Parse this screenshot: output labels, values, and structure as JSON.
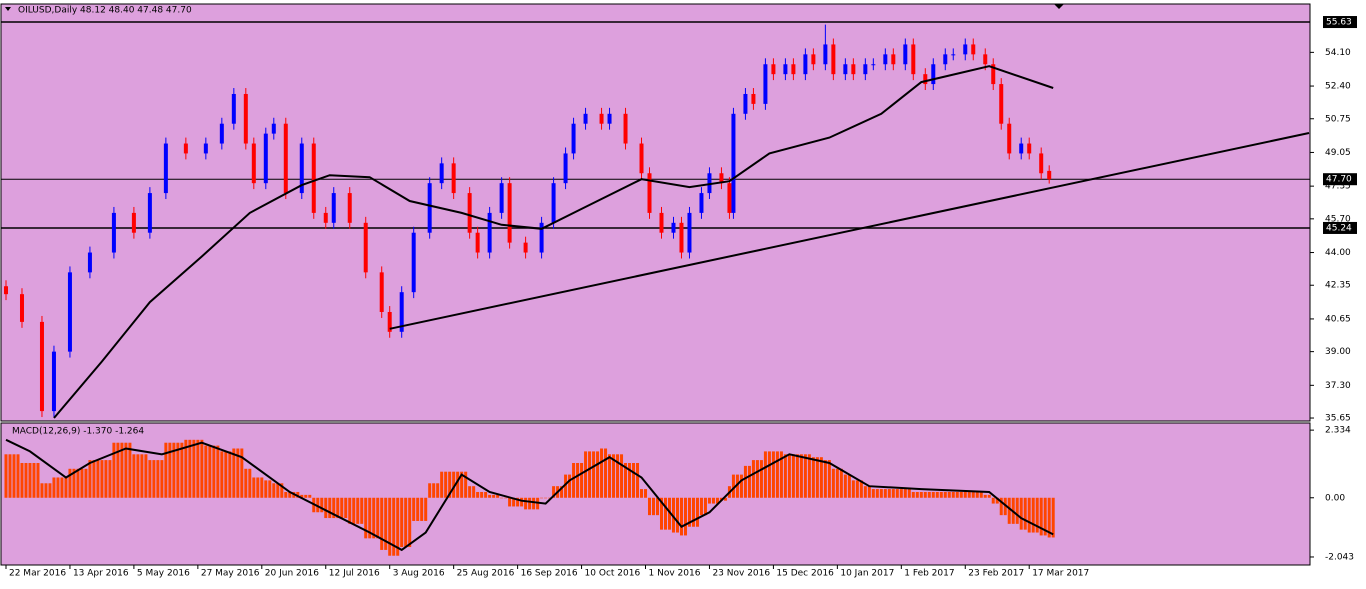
{
  "chart_data": [
    {
      "type": "candlestick",
      "title": "OILUSD,Daily  48.12 48.40 47.48 47.70",
      "x": [
        0,
        4,
        9,
        12,
        16,
        21,
        27,
        32,
        36,
        40,
        45,
        50,
        54,
        57,
        60,
        62,
        65,
        67,
        70,
        74,
        77,
        80,
        82,
        86,
        90,
        94,
        96,
        99,
        102,
        106,
        109,
        112,
        116,
        118,
        121,
        124,
        126,
        130,
        134,
        137,
        140,
        142,
        145,
        149,
        151,
        155,
        159,
        161,
        164,
        167,
        169,
        171,
        174,
        176,
        179,
        181,
        182,
        185,
        187,
        190,
        192,
        195,
        197,
        200,
        202,
        205,
        207,
        210,
        212,
        215,
        217,
        220,
        222,
        225,
        227,
        230,
        232,
        235,
        237,
        240,
        242,
        245,
        247,
        249,
        251,
        254,
        256,
        259,
        261
      ],
      "open": [
        42.3,
        41.9,
        40.5,
        36,
        39,
        43,
        44,
        46,
        45,
        47,
        49.5,
        49,
        49.5,
        50.5,
        52,
        49.5,
        47.5,
        50,
        50.5,
        47,
        49.5,
        46,
        45.5,
        47,
        45.5,
        43,
        41,
        40,
        42,
        45,
        47.5,
        48.5,
        47,
        45,
        44,
        46,
        47.5,
        44.5,
        44,
        45.5,
        47.5,
        49,
        50.5,
        51,
        50.5,
        51,
        49.5,
        48,
        46,
        45,
        45.5,
        44,
        46,
        47,
        48,
        47.5,
        46,
        51,
        52,
        51.5,
        53.5,
        53,
        53.5,
        53,
        54,
        53.5,
        54.5,
        53,
        53.5,
        53,
        53.5,
        53.5,
        54,
        53.5,
        54.5,
        53,
        52.5,
        53.5,
        54,
        54,
        54.5,
        54,
        53.5,
        52.5,
        50.5,
        49,
        49.5,
        49,
        48.12
      ],
      "high": [
        42.6,
        42.2,
        40.8,
        39.3,
        43.3,
        44.3,
        46.3,
        46.3,
        47.3,
        49.8,
        49.8,
        49.8,
        50.8,
        52.3,
        52.3,
        49.8,
        50.3,
        50.8,
        50.8,
        49.8,
        49.8,
        46.3,
        47.3,
        47.3,
        45.8,
        43.3,
        41.3,
        42.3,
        45.3,
        47.8,
        48.8,
        48.8,
        47.3,
        45.3,
        46.3,
        47.8,
        47.8,
        44.8,
        45.8,
        47.8,
        49.3,
        50.8,
        51.3,
        51.3,
        51.3,
        51.3,
        49.8,
        48.3,
        46.3,
        45.8,
        45.8,
        46.3,
        47.3,
        48.3,
        48.3,
        47.8,
        51.3,
        52.3,
        52.3,
        53.8,
        53.8,
        53.8,
        53.8,
        54.3,
        54.3,
        55.5,
        54.8,
        53.8,
        53.8,
        53.8,
        53.8,
        54.3,
        54.3,
        54.8,
        54.8,
        53.3,
        53.8,
        54.3,
        54.3,
        54.8,
        54.8,
        54.3,
        53.8,
        52.8,
        50.8,
        49.8,
        49.8,
        49.3,
        48.4
      ],
      "low": [
        41.6,
        40.2,
        35.7,
        35.7,
        38.7,
        42.7,
        43.7,
        44.7,
        44.7,
        46.7,
        48.7,
        48.7,
        49.2,
        50.2,
        49.2,
        47.2,
        47.2,
        49.7,
        46.7,
        46.7,
        45.7,
        45.2,
        45.2,
        45.2,
        42.7,
        40.7,
        39.7,
        39.7,
        41.7,
        44.7,
        47.2,
        46.7,
        44.7,
        43.7,
        43.7,
        45.7,
        44.2,
        43.7,
        43.7,
        45.2,
        47.2,
        48.7,
        50.2,
        50.2,
        50.2,
        49.2,
        47.7,
        45.7,
        44.7,
        44.7,
        43.7,
        43.7,
        45.7,
        46.7,
        47.2,
        45.7,
        45.7,
        50.7,
        51.2,
        51.2,
        52.7,
        52.7,
        52.7,
        52.7,
        53.2,
        53.2,
        52.7,
        52.7,
        52.7,
        52.7,
        53.2,
        53.2,
        53.2,
        53.2,
        52.7,
        52.2,
        52.2,
        53.2,
        53.7,
        53.7,
        53.7,
        53.2,
        52.2,
        50.2,
        48.7,
        48.7,
        48.7,
        47.7,
        47.48
      ],
      "close": [
        41.9,
        40.5,
        36,
        39,
        43,
        44,
        46,
        45,
        47,
        49.5,
        49,
        49.5,
        50.5,
        52,
        49.5,
        47.5,
        50,
        50.5,
        47,
        49.5,
        46,
        45.5,
        47,
        45.5,
        43,
        41,
        40,
        42,
        45,
        47.5,
        48.5,
        47,
        45,
        44,
        46,
        47.5,
        44.5,
        44,
        45.5,
        47.5,
        49,
        50.5,
        51,
        50.5,
        51,
        49.5,
        48,
        46,
        45,
        45.5,
        44,
        46,
        47,
        48,
        47.5,
        46,
        51,
        52,
        51.5,
        53.5,
        53,
        53.5,
        53,
        54,
        53.5,
        54.5,
        53,
        53.5,
        53,
        53.5,
        53.5,
        54,
        53.5,
        54.5,
        53,
        52.5,
        53.5,
        54,
        54,
        54.5,
        54,
        53.5,
        52.5,
        50.5,
        49,
        49.5,
        49,
        48,
        47.7
      ],
      "up_color": "#0000ff",
      "down_color": "#ff0000",
      "moving_average": {
        "color": "#000000",
        "x": [
          12,
          24,
          36,
          49,
          61,
          74,
          81,
          91,
          101,
          114,
          124,
          134,
          144,
          159,
          171,
          181,
          191,
          206,
          219,
          229,
          246,
          262
        ],
        "values": [
          35.65,
          38.5,
          41.5,
          43.8,
          46,
          47.4,
          47.9,
          47.8,
          46.6,
          46,
          45.4,
          45.2,
          46.2,
          47.7,
          47.3,
          47.6,
          49,
          49.8,
          51,
          52.6,
          53.4,
          52.3
        ]
      },
      "trendline": {
        "x": [
          96,
          326
        ],
        "values": [
          40.15,
          50.03
        ]
      },
      "levels": [
        55.63,
        {
          "value": 47.7,
          "label": "47.70"
        },
        45.24
      ],
      "xlim": [
        -1.25,
        326.25
      ],
      "xticks": [
        {
          "value": 0,
          "label": "22 Mar 2016"
        },
        {
          "value": 16,
          "label": "13 Apr 2016"
        },
        {
          "value": 32,
          "label": "5 May 2016"
        },
        {
          "value": 48,
          "label": "27 May 2016"
        },
        {
          "value": 64,
          "label": "20 Jun 2016"
        },
        {
          "value": 80,
          "label": "12 Jul 2016"
        },
        {
          "value": 96,
          "label": "3 Aug 2016"
        },
        {
          "value": 112,
          "label": "25 Aug 2016"
        },
        {
          "value": 128,
          "label": "16 Sep 2016"
        },
        {
          "value": 144,
          "label": "10 Oct 2016"
        },
        {
          "value": 160,
          "label": "1 Nov 2016"
        },
        {
          "value": 176,
          "label": "23 Nov 2016"
        },
        {
          "value": 192,
          "label": "15 Dec 2016"
        },
        {
          "value": 208,
          "label": "10 Jan 2017"
        },
        {
          "value": 224,
          "label": "1 Feb 2017"
        },
        {
          "value": 240,
          "label": "23 Feb 2017"
        },
        {
          "value": 256,
          "label": "17 Mar 2017"
        }
      ],
      "ylim": [
        35.5,
        56.54
      ],
      "yticks": [
        {
          "value": 54.1,
          "label": "54.10"
        },
        {
          "value": 52.4,
          "label": "52.40"
        },
        50.75,
        49.05,
        47.35,
        {
          "value": 45.7,
          "label": "45.70"
        },
        {
          "value": 44,
          "label": "44.00"
        },
        42.35,
        40.65,
        {
          "value": 39,
          "label": "39.00"
        },
        {
          "value": 37.3,
          "label": "37.30"
        },
        35.65
      ]
    },
    {
      "type": "macd",
      "title": "MACD(12,26,9) -1.370 -1.264",
      "x": [
        0,
        4,
        9,
        12,
        16,
        21,
        27,
        32,
        36,
        40,
        45,
        50,
        54,
        57,
        60,
        62,
        65,
        67,
        70,
        74,
        77,
        80,
        82,
        86,
        90,
        94,
        96,
        99,
        102,
        106,
        109,
        112,
        116,
        118,
        121,
        124,
        126,
        130,
        134,
        137,
        140,
        142,
        145,
        149,
        151,
        155,
        159,
        161,
        164,
        167,
        169,
        171,
        174,
        176,
        179,
        181,
        182,
        185,
        187,
        190,
        192,
        195,
        197,
        200,
        202,
        205,
        207,
        210,
        212,
        215,
        217,
        220,
        222,
        225,
        227,
        230,
        232,
        235,
        237,
        240,
        242,
        245,
        247,
        249,
        251,
        254,
        256,
        259,
        261
      ],
      "histogram": {
        "color": "#ff4500",
        "values": [
          1.5,
          1.2,
          0.5,
          0.7,
          1.0,
          1.3,
          1.9,
          1.5,
          1.3,
          1.9,
          2.0,
          1.8,
          1.6,
          1.7,
          1.0,
          0.7,
          0.6,
          0.5,
          0.2,
          0.1,
          -0.5,
          -0.7,
          -0.7,
          -0.9,
          -1.4,
          -1.8,
          -2.0,
          -1.7,
          -0.8,
          0.5,
          0.9,
          0.9,
          0.4,
          0.2,
          0.1,
          0.0,
          -0.3,
          -0.4,
          0.0,
          0.4,
          0.8,
          1.2,
          1.6,
          1.7,
          1.5,
          1.2,
          0.3,
          -0.6,
          -1.1,
          -1.2,
          -1.3,
          -1.0,
          -0.6,
          -0.2,
          -0.1,
          0.4,
          0.8,
          1.1,
          1.3,
          1.6,
          1.6,
          1.5,
          1.5,
          1.5,
          1.4,
          1.3,
          1.0,
          0.8,
          0.6,
          0.4,
          0.3,
          0.3,
          0.3,
          0.3,
          0.2,
          0.2,
          0.2,
          0.2,
          0.2,
          0.2,
          0.2,
          0.1,
          -0.2,
          -0.6,
          -0.9,
          -1.1,
          -1.2,
          -1.3,
          -1.37
        ]
      },
      "signal": {
        "color": "#000000",
        "x": [
          0,
          6,
          15,
          21,
          30,
          39,
          49,
          59,
          71,
          81,
          91,
          99,
          105,
          114,
          121,
          129,
          135,
          141,
          151,
          159,
          169,
          176,
          184,
          196,
          206,
          216,
          229,
          246,
          254,
          262
        ],
        "values": [
          2.0,
          1.6,
          0.7,
          1.2,
          1.7,
          1.5,
          1.9,
          1.4,
          0.2,
          -0.5,
          -1.2,
          -1.8,
          -1.2,
          0.8,
          0.2,
          -0.1,
          -0.2,
          0.6,
          1.4,
          0.7,
          -1.0,
          -0.5,
          0.6,
          1.5,
          1.2,
          0.4,
          0.3,
          0.2,
          -0.7,
          -1.264
        ]
      },
      "ylim": [
        -2.32,
        2.58
      ],
      "yticks": [
        2.334,
        {
          "value": 0,
          "label": "0.00"
        },
        -2.043
      ]
    }
  ]
}
